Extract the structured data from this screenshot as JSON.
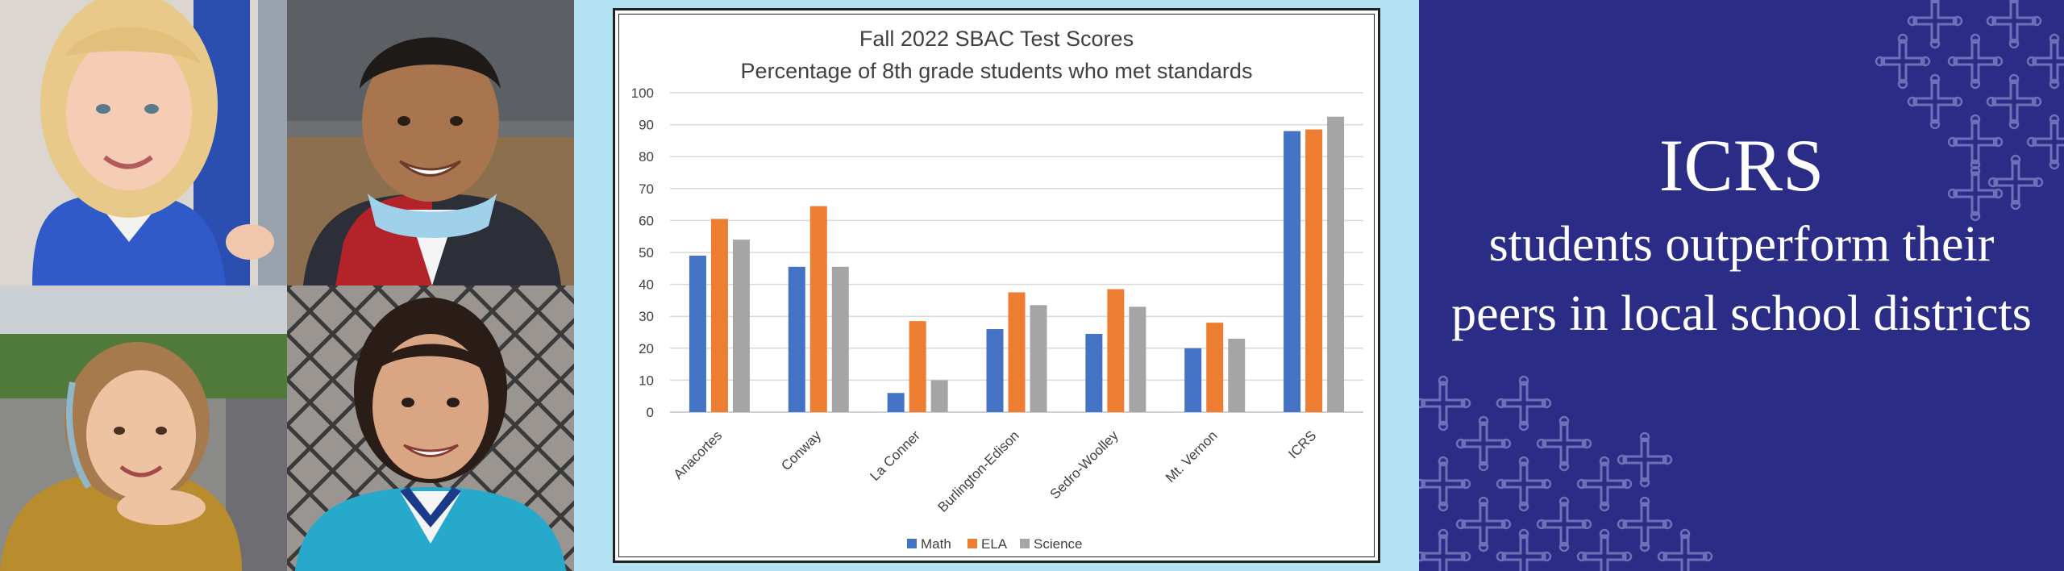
{
  "photos": [
    {
      "subject": "blonde-girl"
    },
    {
      "subject": "smiling-boy"
    },
    {
      "subject": "curly-haired-boy"
    },
    {
      "subject": "girl-in-teal-jacket"
    }
  ],
  "chart_data": {
    "type": "bar",
    "title": "Fall 2022 SBAC Test Scores",
    "subtitle": "Percentage of 8th grade students who met standards",
    "categories": [
      "Anacortes",
      "Conway",
      "La Conner",
      "Burlington-Edison",
      "Sedro-Woolley",
      "Mt. Vernon",
      "ICRS"
    ],
    "series": [
      {
        "name": "Math",
        "color": "#4472c4",
        "values": [
          49,
          45.5,
          6,
          26,
          24.5,
          20,
          88
        ]
      },
      {
        "name": "ELA",
        "color": "#ed7d31",
        "values": [
          60.5,
          64.5,
          28.5,
          37.5,
          38.5,
          28,
          88.5
        ]
      },
      {
        "name": "Science",
        "color": "#a5a5a5",
        "values": [
          54,
          45.5,
          10,
          33.5,
          33,
          23,
          92.5
        ]
      }
    ],
    "ylim": [
      0,
      100
    ],
    "yticks": [
      "0",
      "10",
      "20",
      "30",
      "40",
      "50",
      "60",
      "70",
      "80",
      "90",
      "100"
    ],
    "grid": true,
    "legend": "bottom"
  },
  "banner": {
    "title": "ICRS",
    "subtitle": "students outperform their peers in local school districts",
    "background": "#2b2c86",
    "pattern_icon": "cross-icon"
  }
}
